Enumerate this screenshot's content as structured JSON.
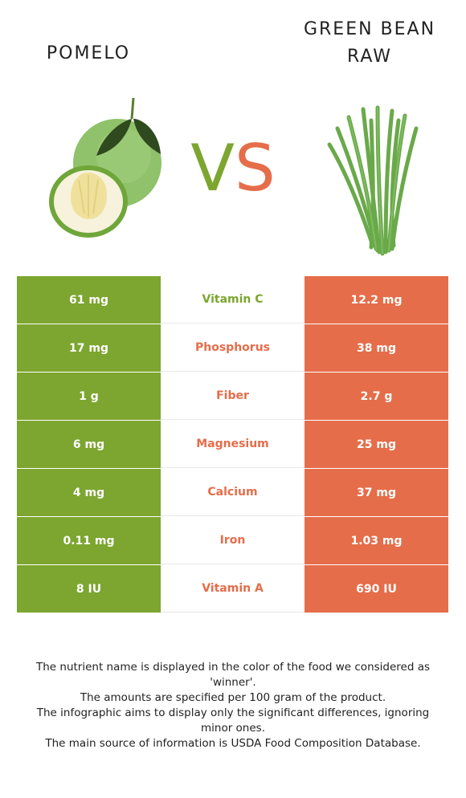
{
  "left_food": {
    "name": "Pomelo"
  },
  "right_food": {
    "name": "Green bean raw"
  },
  "vs": {
    "v": "V",
    "s": "S"
  },
  "colors": {
    "left": "#7ca630",
    "right": "#e56d4a"
  },
  "nutrients": [
    {
      "name": "Vitamin C",
      "left": "61 mg",
      "right": "12.2 mg",
      "winner": "left"
    },
    {
      "name": "Phosphorus",
      "left": "17 mg",
      "right": "38 mg",
      "winner": "right"
    },
    {
      "name": "Fiber",
      "left": "1 g",
      "right": "2.7 g",
      "winner": "right"
    },
    {
      "name": "Magnesium",
      "left": "6 mg",
      "right": "25 mg",
      "winner": "right"
    },
    {
      "name": "Calcium",
      "left": "4 mg",
      "right": "37 mg",
      "winner": "right"
    },
    {
      "name": "Iron",
      "left": "0.11 mg",
      "right": "1.03 mg",
      "winner": "right"
    },
    {
      "name": "Vitamin A",
      "left": "8 IU",
      "right": "690 IU",
      "winner": "right"
    }
  ],
  "footnote": [
    "The nutrient name is displayed in the color of the food we considered as 'winner'.",
    "The amounts are specified per 100 gram of the product.",
    "The infographic aims to display only the significant differences, ignoring minor ones.",
    "The main source of information is USDA Food Composition Database."
  ]
}
